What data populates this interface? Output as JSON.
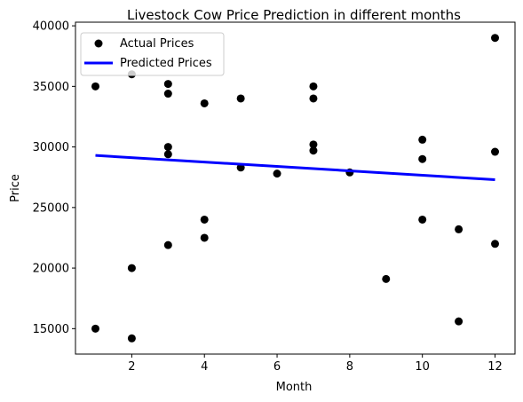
{
  "chart_data": {
    "type": "scatter",
    "title": "Livestock Cow Price Prediction in different months",
    "xlabel": "Month",
    "ylabel": "Price",
    "xlim": [
      0.45,
      12.55
    ],
    "ylim": [
      12900,
      40300
    ],
    "xticks": [
      2,
      4,
      6,
      8,
      10,
      12
    ],
    "yticks": [
      15000,
      20000,
      25000,
      30000,
      35000,
      40000
    ],
    "grid": false,
    "legend_position": "top-left",
    "series": [
      {
        "name": "Actual Prices",
        "kind": "scatter",
        "color": "#000000",
        "points": [
          [
            1,
            35000
          ],
          [
            1,
            15000
          ],
          [
            2,
            36000
          ],
          [
            2,
            20000
          ],
          [
            2,
            14200
          ],
          [
            3,
            35200
          ],
          [
            3,
            34400
          ],
          [
            3,
            30000
          ],
          [
            3,
            29400
          ],
          [
            3,
            21900
          ],
          [
            4,
            33600
          ],
          [
            4,
            24000
          ],
          [
            4,
            22500
          ],
          [
            5,
            34000
          ],
          [
            5,
            28300
          ],
          [
            6,
            27800
          ],
          [
            7,
            35000
          ],
          [
            7,
            34000
          ],
          [
            7,
            30200
          ],
          [
            7,
            29700
          ],
          [
            8,
            27900
          ],
          [
            9,
            19100
          ],
          [
            10,
            30600
          ],
          [
            10,
            29000
          ],
          [
            10,
            24000
          ],
          [
            11,
            23200
          ],
          [
            11,
            15600
          ],
          [
            12,
            39000
          ],
          [
            12,
            29600
          ],
          [
            12,
            22000
          ]
        ]
      },
      {
        "name": "Predicted Prices",
        "kind": "line",
        "color": "#0000ff",
        "points": [
          [
            1,
            29300
          ],
          [
            12,
            27300
          ]
        ]
      }
    ]
  }
}
